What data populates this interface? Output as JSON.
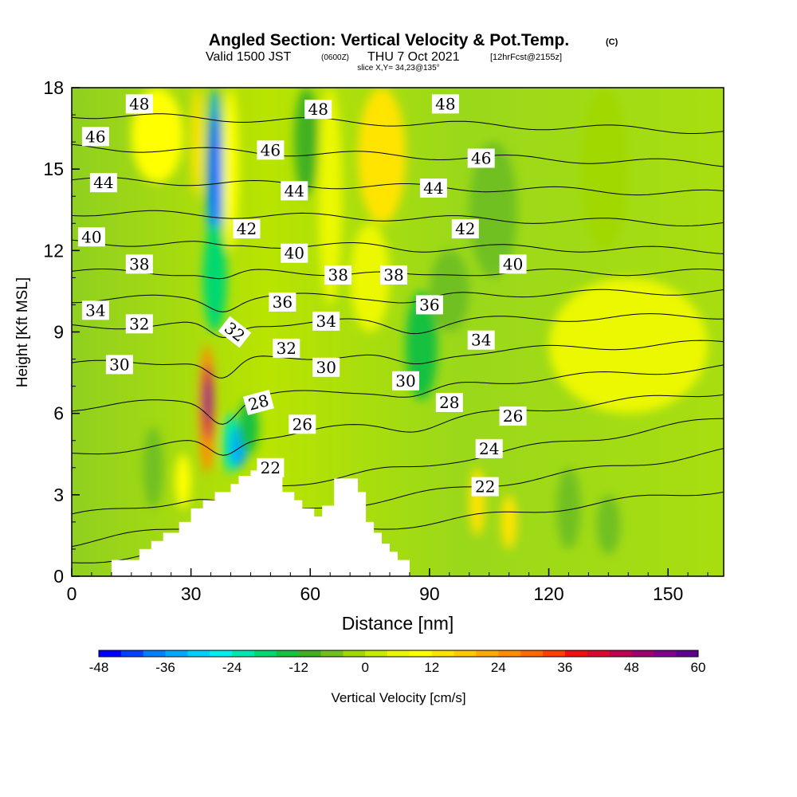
{
  "header": {
    "title": "Angled Section: Vertical Velocity & Pot.Temp.",
    "title_unit": "(C)",
    "valid_prefix": "Valid 1500 JST",
    "valid_utc": "(0600Z)",
    "valid_date": "THU 7 Oct 2021",
    "forecast": "[12hrFcst@2155z]",
    "slice": "slice X,Y= 34,23@135°"
  },
  "chart_data": {
    "type": "heatmap",
    "description_fields": "Vertical velocity (filled contours, cm/s) with potential temperature isolines (C)",
    "xlabel": "Distance [nm]",
    "ylabel": "Height [Kft MSL]",
    "xlim": [
      0,
      164
    ],
    "ylim": [
      0,
      18
    ],
    "x_ticks": [
      0,
      30,
      60,
      90,
      120,
      150
    ],
    "y_ticks": [
      0,
      3,
      6,
      9,
      12,
      15,
      18
    ],
    "terrain": {
      "x": [
        10,
        10,
        17,
        17,
        20,
        20,
        23,
        23,
        27,
        27,
        30,
        30,
        33,
        33,
        36,
        36,
        40,
        40,
        42,
        42,
        45,
        45,
        53,
        53,
        56,
        56,
        58,
        58,
        61,
        61,
        63,
        63,
        66,
        66,
        72,
        72,
        74,
        74,
        76,
        76,
        78,
        78,
        80,
        80,
        82,
        82,
        85,
        85
      ],
      "y": [
        0.3,
        0.6,
        0.6,
        1.0,
        1.0,
        1.3,
        1.3,
        1.6,
        1.6,
        2.0,
        2.0,
        2.5,
        2.5,
        2.8,
        2.8,
        3.1,
        3.1,
        3.4,
        3.4,
        3.7,
        3.7,
        3.9,
        3.9,
        3.1,
        3.1,
        2.8,
        2.8,
        2.5,
        2.5,
        2.2,
        2.2,
        2.6,
        2.6,
        3.6,
        3.6,
        3.1,
        3.1,
        2.0,
        2.0,
        1.6,
        1.6,
        1.2,
        1.2,
        0.9,
        0.9,
        0.6,
        0.6,
        0.3
      ]
    },
    "velocity_cells": [
      {
        "x0": 34,
        "x1": 38,
        "y0": 10.5,
        "y1": 18,
        "v": -36
      },
      {
        "x0": 35,
        "x1": 37,
        "y0": 13,
        "y1": 17,
        "v": -44
      },
      {
        "x0": 33,
        "x1": 39,
        "y0": 9,
        "y1": 13,
        "v": -20
      },
      {
        "x0": 30,
        "x1": 33,
        "y0": 14,
        "y1": 18,
        "v": 12
      },
      {
        "x0": 38,
        "x1": 42,
        "y0": 12,
        "y1": 18,
        "v": 8
      },
      {
        "x0": 56,
        "x1": 62,
        "y0": 14,
        "y1": 18,
        "v": -10
      },
      {
        "x0": 62,
        "x1": 68,
        "y0": 10,
        "y1": 18,
        "v": 6
      },
      {
        "x0": 72,
        "x1": 84,
        "y0": 13,
        "y1": 18,
        "v": 12
      },
      {
        "x0": 70,
        "x1": 80,
        "y0": 9,
        "y1": 13,
        "v": 6
      },
      {
        "x0": 15,
        "x1": 28,
        "y0": 14.5,
        "y1": 18,
        "v": 10
      },
      {
        "x0": 84,
        "x1": 92,
        "y0": 6.5,
        "y1": 10.5,
        "v": -14
      },
      {
        "x0": 90,
        "x1": 100,
        "y0": 9,
        "y1": 12,
        "v": -8
      },
      {
        "x0": 100,
        "x1": 112,
        "y0": 11,
        "y1": 16,
        "v": -6
      },
      {
        "x0": 120,
        "x1": 160,
        "y0": 6,
        "y1": 11,
        "v": 4
      },
      {
        "x0": 128,
        "x1": 140,
        "y0": 12,
        "y1": 18,
        "v": -4
      },
      {
        "x0": 32,
        "x1": 36,
        "y0": 3.8,
        "y1": 8.5,
        "v": 24
      },
      {
        "x0": 33,
        "x1": 35.5,
        "y0": 5,
        "y1": 7.8,
        "v": 44
      },
      {
        "x0": 33.5,
        "x1": 35,
        "y0": 5.8,
        "y1": 7.2,
        "v": 56
      },
      {
        "x0": 38,
        "x1": 42,
        "y0": 3.8,
        "y1": 6,
        "v": -24
      },
      {
        "x0": 40,
        "x1": 44,
        "y0": 4,
        "y1": 5.5,
        "v": -36
      },
      {
        "x0": 42,
        "x1": 47,
        "y0": 4.5,
        "y1": 6.5,
        "v": -14
      },
      {
        "x0": 18,
        "x1": 23,
        "y0": 2.5,
        "y1": 5.5,
        "v": -8
      },
      {
        "x0": 26,
        "x1": 30,
        "y0": 2.5,
        "y1": 4.5,
        "v": 10
      },
      {
        "x0": 100,
        "x1": 104,
        "y0": 1.5,
        "y1": 4,
        "v": 12
      },
      {
        "x0": 108,
        "x1": 112,
        "y0": 1,
        "y1": 3,
        "v": 14
      },
      {
        "x0": 122,
        "x1": 128,
        "y0": 1,
        "y1": 4,
        "v": -8
      },
      {
        "x0": 132,
        "x1": 138,
        "y0": 0.8,
        "y1": 3,
        "v": -6
      }
    ],
    "isentropes": [
      {
        "value": 22,
        "y_left": 0.5,
        "y_right": 3.2
      },
      {
        "value": 24,
        "y_left": 1.2,
        "y_right": 4.6
      },
      {
        "value": 26,
        "y_left": 2.2,
        "y_right": 5.8
      },
      {
        "value": 28,
        "y_left": 4.5,
        "y_right": 6.8
      },
      {
        "value": 30,
        "y_left": 6.2,
        "y_right": 7.7
      },
      {
        "value": 32,
        "y_left": 7.8,
        "y_right": 8.6
      },
      {
        "value": 34,
        "y_left": 9.2,
        "y_right": 9.6
      },
      {
        "value": 36,
        "y_left": 10.2,
        "y_right": 10.5
      },
      {
        "value": 38,
        "y_left": 11.2,
        "y_right": 11.2
      },
      {
        "value": 40,
        "y_left": 12.3,
        "y_right": 12.0
      },
      {
        "value": 42,
        "y_left": 13.4,
        "y_right": 13.0
      },
      {
        "value": 44,
        "y_left": 14.6,
        "y_right": 14.1
      },
      {
        "value": 46,
        "y_left": 15.8,
        "y_right": 15.2
      },
      {
        "value": 48,
        "y_left": 17.0,
        "y_right": 16.4
      }
    ],
    "contour_labels": [
      {
        "text": "48",
        "x": 17,
        "y": 17.4,
        "rot": 0
      },
      {
        "text": "48",
        "x": 62,
        "y": 17.2,
        "rot": 0
      },
      {
        "text": "48",
        "x": 94,
        "y": 17.4,
        "rot": 0
      },
      {
        "text": "46",
        "x": 6,
        "y": 16.2,
        "rot": 0
      },
      {
        "text": "46",
        "x": 50,
        "y": 15.7,
        "rot": 0
      },
      {
        "text": "46",
        "x": 103,
        "y": 15.4,
        "rot": 0
      },
      {
        "text": "44",
        "x": 8,
        "y": 14.5,
        "rot": 0
      },
      {
        "text": "44",
        "x": 56,
        "y": 14.2,
        "rot": 0
      },
      {
        "text": "44",
        "x": 91,
        "y": 14.3,
        "rot": 0
      },
      {
        "text": "42",
        "x": 44,
        "y": 12.8,
        "rot": 0
      },
      {
        "text": "42",
        "x": 99,
        "y": 12.8,
        "rot": 0
      },
      {
        "text": "40",
        "x": 5,
        "y": 12.5,
        "rot": 0
      },
      {
        "text": "40",
        "x": 56,
        "y": 11.9,
        "rot": 0
      },
      {
        "text": "40",
        "x": 111,
        "y": 11.5,
        "rot": 0
      },
      {
        "text": "38",
        "x": 17,
        "y": 11.5,
        "rot": 0
      },
      {
        "text": "38",
        "x": 67,
        "y": 11.1,
        "rot": 0
      },
      {
        "text": "38",
        "x": 81,
        "y": 11.1,
        "rot": 0
      },
      {
        "text": "36",
        "x": 53,
        "y": 10.1,
        "rot": 0
      },
      {
        "text": "36",
        "x": 90,
        "y": 10.0,
        "rot": 0
      },
      {
        "text": "34",
        "x": 6,
        "y": 9.8,
        "rot": 0
      },
      {
        "text": "34",
        "x": 64,
        "y": 9.4,
        "rot": 0
      },
      {
        "text": "34",
        "x": 103,
        "y": 8.7,
        "rot": 0
      },
      {
        "text": "32",
        "x": 17,
        "y": 9.3,
        "rot": 0
      },
      {
        "text": "32",
        "x": 41,
        "y": 9.0,
        "rot": 38
      },
      {
        "text": "32",
        "x": 54,
        "y": 8.4,
        "rot": 0
      },
      {
        "text": "30",
        "x": 12,
        "y": 7.8,
        "rot": 0
      },
      {
        "text": "30",
        "x": 64,
        "y": 7.7,
        "rot": 0
      },
      {
        "text": "30",
        "x": 84,
        "y": 7.2,
        "rot": 0
      },
      {
        "text": "28",
        "x": 47,
        "y": 6.4,
        "rot": -15
      },
      {
        "text": "28",
        "x": 95,
        "y": 6.4,
        "rot": 0
      },
      {
        "text": "26",
        "x": 58,
        "y": 5.6,
        "rot": 0
      },
      {
        "text": "26",
        "x": 111,
        "y": 5.9,
        "rot": 0
      },
      {
        "text": "24",
        "x": 105,
        "y": 4.7,
        "rot": 0
      },
      {
        "text": "22",
        "x": 50,
        "y": 4.0,
        "rot": 0
      },
      {
        "text": "22",
        "x": 104,
        "y": 3.3,
        "rot": 0
      }
    ],
    "colorbar": {
      "label": "Vertical Velocity [cm/s]",
      "min": -48,
      "max": 60,
      "step": 4,
      "tick_labels": [
        "-48",
        "-36",
        "-24",
        "-12",
        "0",
        "12",
        "24",
        "36",
        "48",
        "60"
      ],
      "colors": [
        "#0000ff",
        "#0040ff",
        "#0080ff",
        "#00a8ff",
        "#00d0ff",
        "#00f0f0",
        "#00e8b0",
        "#00d870",
        "#18c040",
        "#40b020",
        "#70c020",
        "#a0d800",
        "#c8ec00",
        "#ecf800",
        "#ffff00",
        "#ffe400",
        "#ffc800",
        "#ffaa00",
        "#ff8c00",
        "#ff6a00",
        "#ff4000",
        "#f01010",
        "#d80830",
        "#c00050",
        "#a00070",
        "#800090",
        "#600090"
      ]
    }
  }
}
